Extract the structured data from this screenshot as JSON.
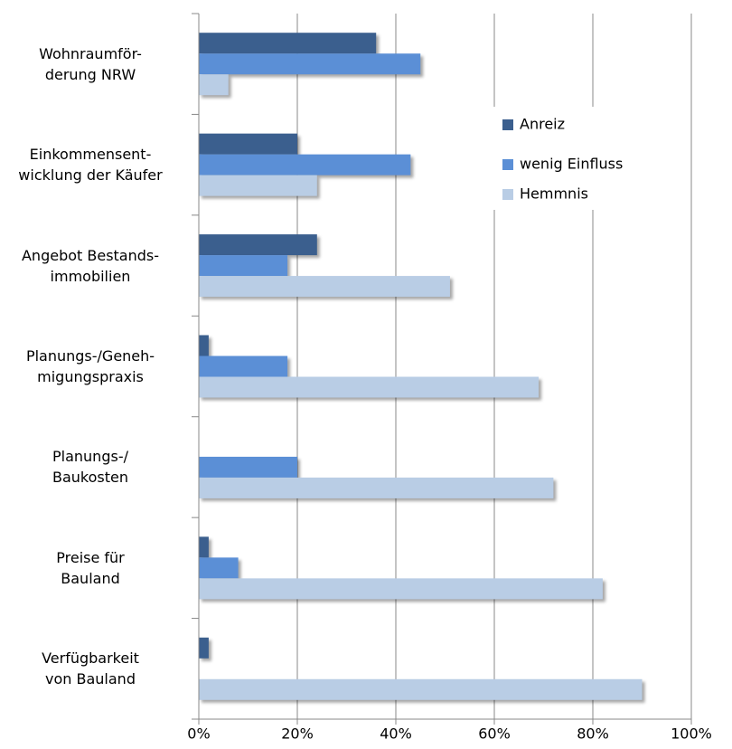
{
  "chart_data": {
    "type": "hbar",
    "categories": [
      "Wohnraumför-\nderung NRW",
      "Einkommensent-\nwicklung der Käufer",
      "Angebot Bestands-\nimmobilien",
      "Planungs-/Geneh-\nmigungspraxis",
      "Planungs-/\nBaukosten",
      "Preise für\nBauland",
      "Verfügbarkeit\nvon Bauland"
    ],
    "series": [
      {
        "name": "Anreiz",
        "color": "#3b5f8e",
        "values": [
          36,
          20,
          24,
          2,
          0,
          2,
          2
        ]
      },
      {
        "name": "wenig Einfluss",
        "color": "#5b8fd6",
        "values": [
          45,
          43,
          18,
          18,
          20,
          8,
          0
        ]
      },
      {
        "name": "Hemmnis",
        "color": "#b9cde5",
        "values": [
          6,
          24,
          51,
          69,
          72,
          82,
          90
        ]
      }
    ],
    "xlim": [
      0,
      100
    ],
    "xticks": [
      {
        "value": 0,
        "label": "0%"
      },
      {
        "value": 20,
        "label": "20%"
      },
      {
        "value": 40,
        "label": "40%"
      },
      {
        "value": 60,
        "label": "60%"
      },
      {
        "value": 80,
        "label": "80%"
      },
      {
        "value": 100,
        "label": "100%"
      }
    ],
    "grid": true
  }
}
